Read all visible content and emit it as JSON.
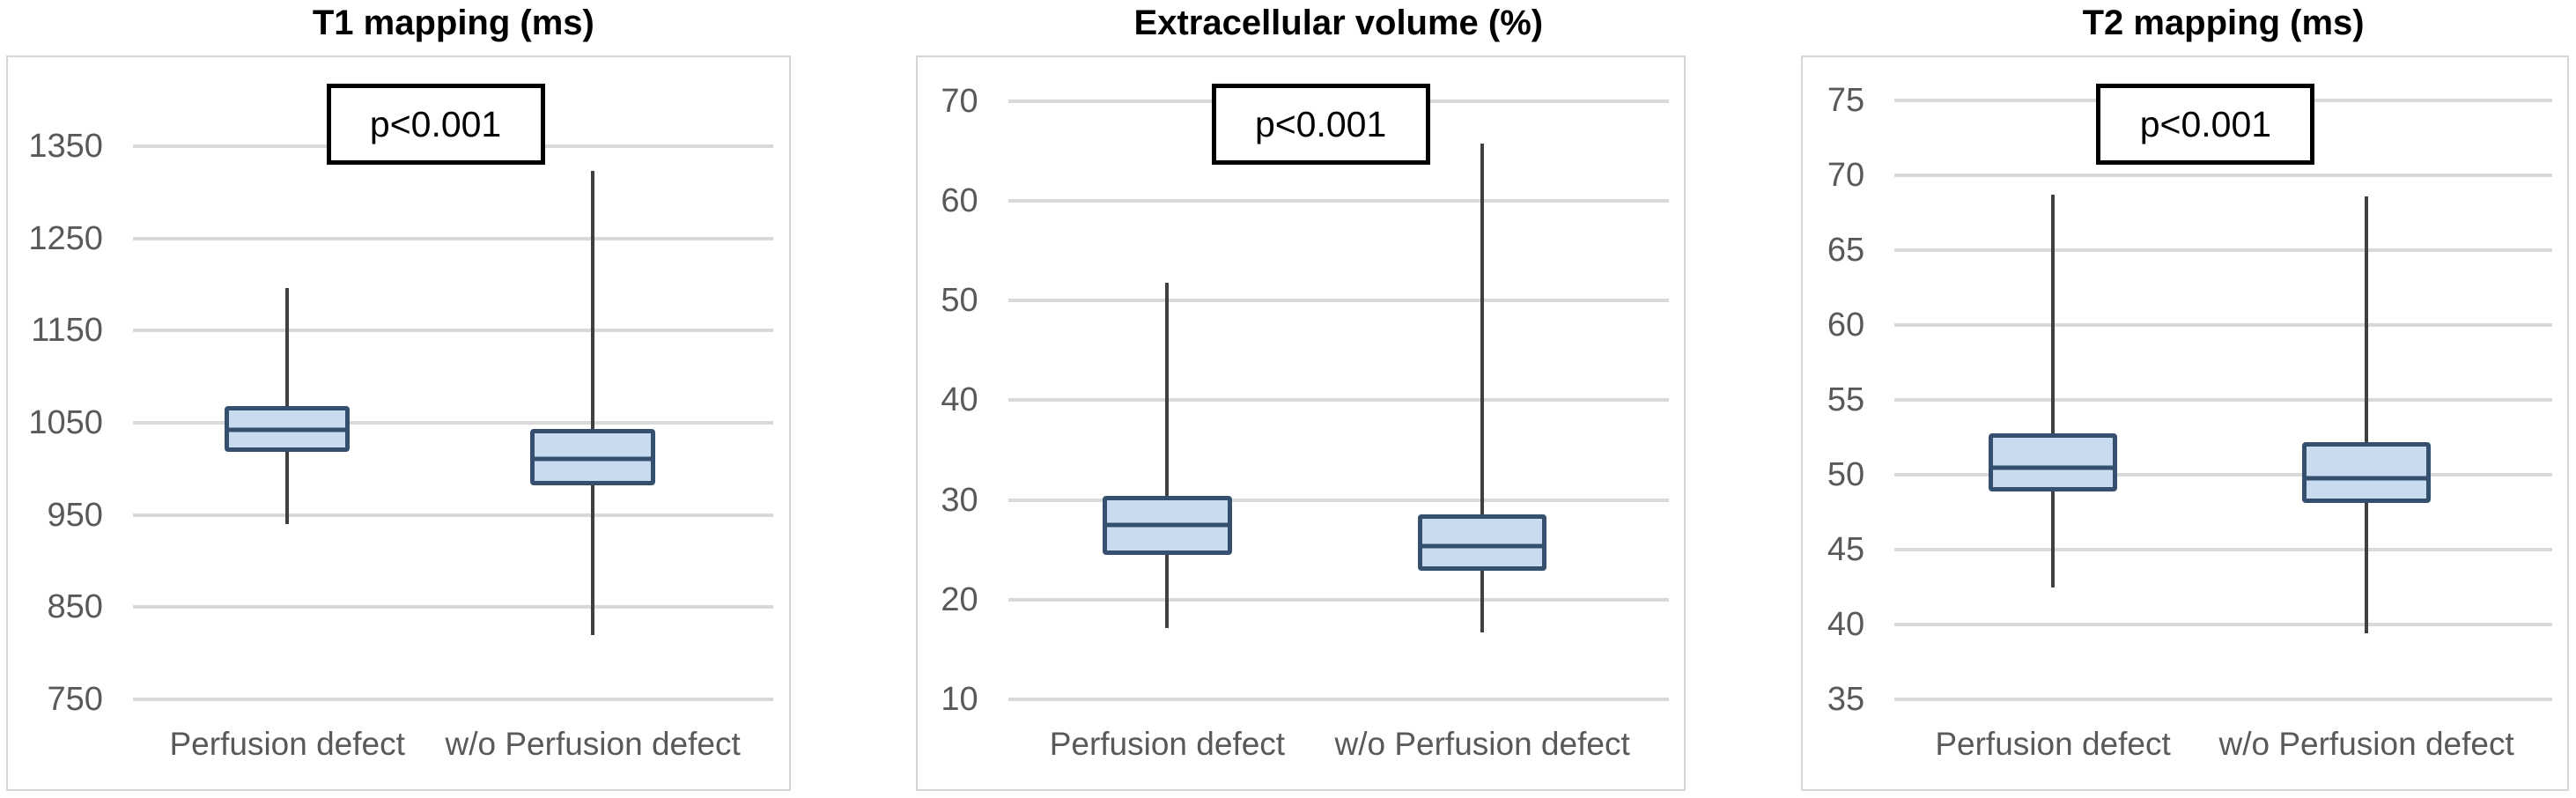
{
  "figure": {
    "description": "Three box-and-whisker chart panels comparing patients with and without perfusion defect"
  },
  "colors": {
    "box_fill": "#c9dcef",
    "box_border": "#35506e",
    "median": "#35506e",
    "whisker": "#404040",
    "gridline": "#d9d9d9",
    "frame_border": "#d6d6d6",
    "tick_label": "#595959",
    "category_label": "#595959",
    "title": "#000000",
    "p_box_border": "#000000",
    "p_box_fill": "#ffffff"
  },
  "chart_data": [
    {
      "type": "box",
      "title": "T1 mapping (ms)",
      "p_annotation": "p<0.001",
      "categories": [
        "Perfusion defect",
        "w/o Perfusion defect"
      ],
      "y_ticks": [
        1350,
        1250,
        1150,
        1050,
        950,
        850,
        750
      ],
      "ylim": [
        652,
        1447
      ],
      "grid": true,
      "legend": "none",
      "series": [
        {
          "name": "Perfusion defect",
          "whisker_low": 940,
          "q1": 1018,
          "median": 1042,
          "q3": 1068,
          "whisker_high": 1196
        },
        {
          "name": "w/o Perfusion defect",
          "whisker_low": 819,
          "q1": 982,
          "median": 1011,
          "q3": 1043,
          "whisker_high": 1324
        }
      ]
    },
    {
      "type": "box",
      "title": "Extracellular volume (%)",
      "p_annotation": "p<0.001",
      "categories": [
        "Perfusion defect",
        "w/o Perfusion defect"
      ],
      "y_ticks": [
        70,
        60,
        50,
        40,
        30,
        20,
        10
      ],
      "ylim": [
        1.0,
        74.4
      ],
      "grid": true,
      "legend": "none",
      "series": [
        {
          "name": "Perfusion defect",
          "whisker_low": 17.2,
          "q1": 24.5,
          "median": 27.5,
          "q3": 30.4,
          "whisker_high": 51.8
        },
        {
          "name": "w/o Perfusion defect",
          "whisker_low": 16.7,
          "q1": 22.9,
          "median": 25.4,
          "q3": 28.6,
          "whisker_high": 65.7
        }
      ]
    },
    {
      "type": "box",
      "title": "T2 mapping (ms)",
      "p_annotation": "p<0.001",
      "categories": [
        "Perfusion defect",
        "w/o Perfusion defect"
      ],
      "y_ticks": [
        75,
        70,
        65,
        60,
        55,
        50,
        45,
        40,
        35
      ],
      "ylim": [
        29.0,
        77.9
      ],
      "grid": true,
      "legend": "none",
      "series": [
        {
          "name": "Perfusion defect",
          "whisker_low": 42.5,
          "q1": 48.9,
          "median": 50.5,
          "q3": 52.8,
          "whisker_high": 68.7
        },
        {
          "name": "w/o Perfusion defect",
          "whisker_low": 39.4,
          "q1": 48.1,
          "median": 49.8,
          "q3": 52.2,
          "whisker_high": 68.6
        }
      ]
    }
  ]
}
